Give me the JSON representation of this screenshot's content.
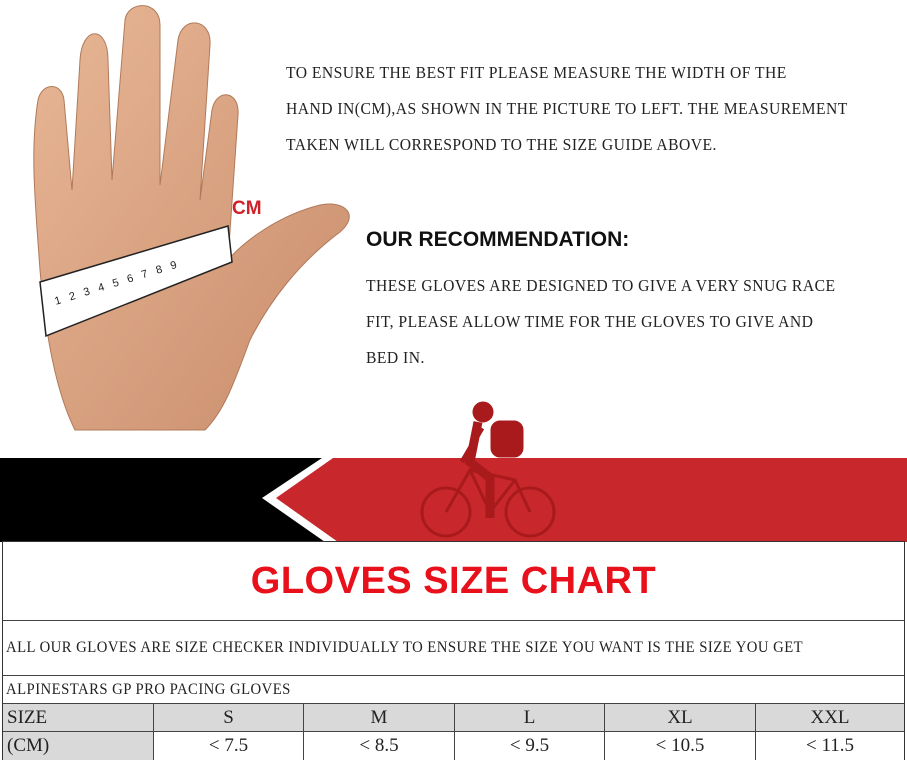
{
  "intro_text": [
    "TO ENSURE THE BEST FIT PLEASE MEASURE THE WIDTH OF THE",
    "HAND IN(CM),AS SHOWN IN THE PICTURE TO LEFT. THE MEASUREMENT",
    "TAKEN WILL CORRESPOND TO THE SIZE GUIDE ABOVE."
  ],
  "ruler_label": "CM",
  "ruler_ticks": [
    "1",
    "2",
    "3",
    "4",
    "5",
    "6",
    "7",
    "8",
    "9"
  ],
  "recommendation": {
    "title": "OUR RECOMMENDATION:",
    "lines": [
      "THESE GLOVES ARE DESIGNED TO GIVE A VERY SNUG RACE",
      "FIT, PLEASE ALLOW TIME FOR THE GLOVES TO GIVE AND",
      "BED IN."
    ]
  },
  "colors": {
    "banner_red": "#c8282c",
    "banner_black": "#000000",
    "title_red": "#e8101a",
    "header_gray": "#d9d9d9"
  },
  "chart": {
    "title": "GLOVES SIZE CHART",
    "note": "ALL  OUR GLOVES ARE SIZE CHECKER INDIVIDUALLY TO ENSURE THE SIZE YOU WANT IS THE SIZE YOU GET",
    "product": "ALPINESTARS GP PRO PACING GLOVES",
    "size_label": "SIZE",
    "unit_label": "(CM)",
    "sizes": [
      "S",
      "M",
      "L",
      "XL",
      "XXL"
    ],
    "measurements": [
      "< 7.5",
      "< 8.5",
      "< 9.5",
      "< 10.5",
      "< 11.5"
    ]
  }
}
